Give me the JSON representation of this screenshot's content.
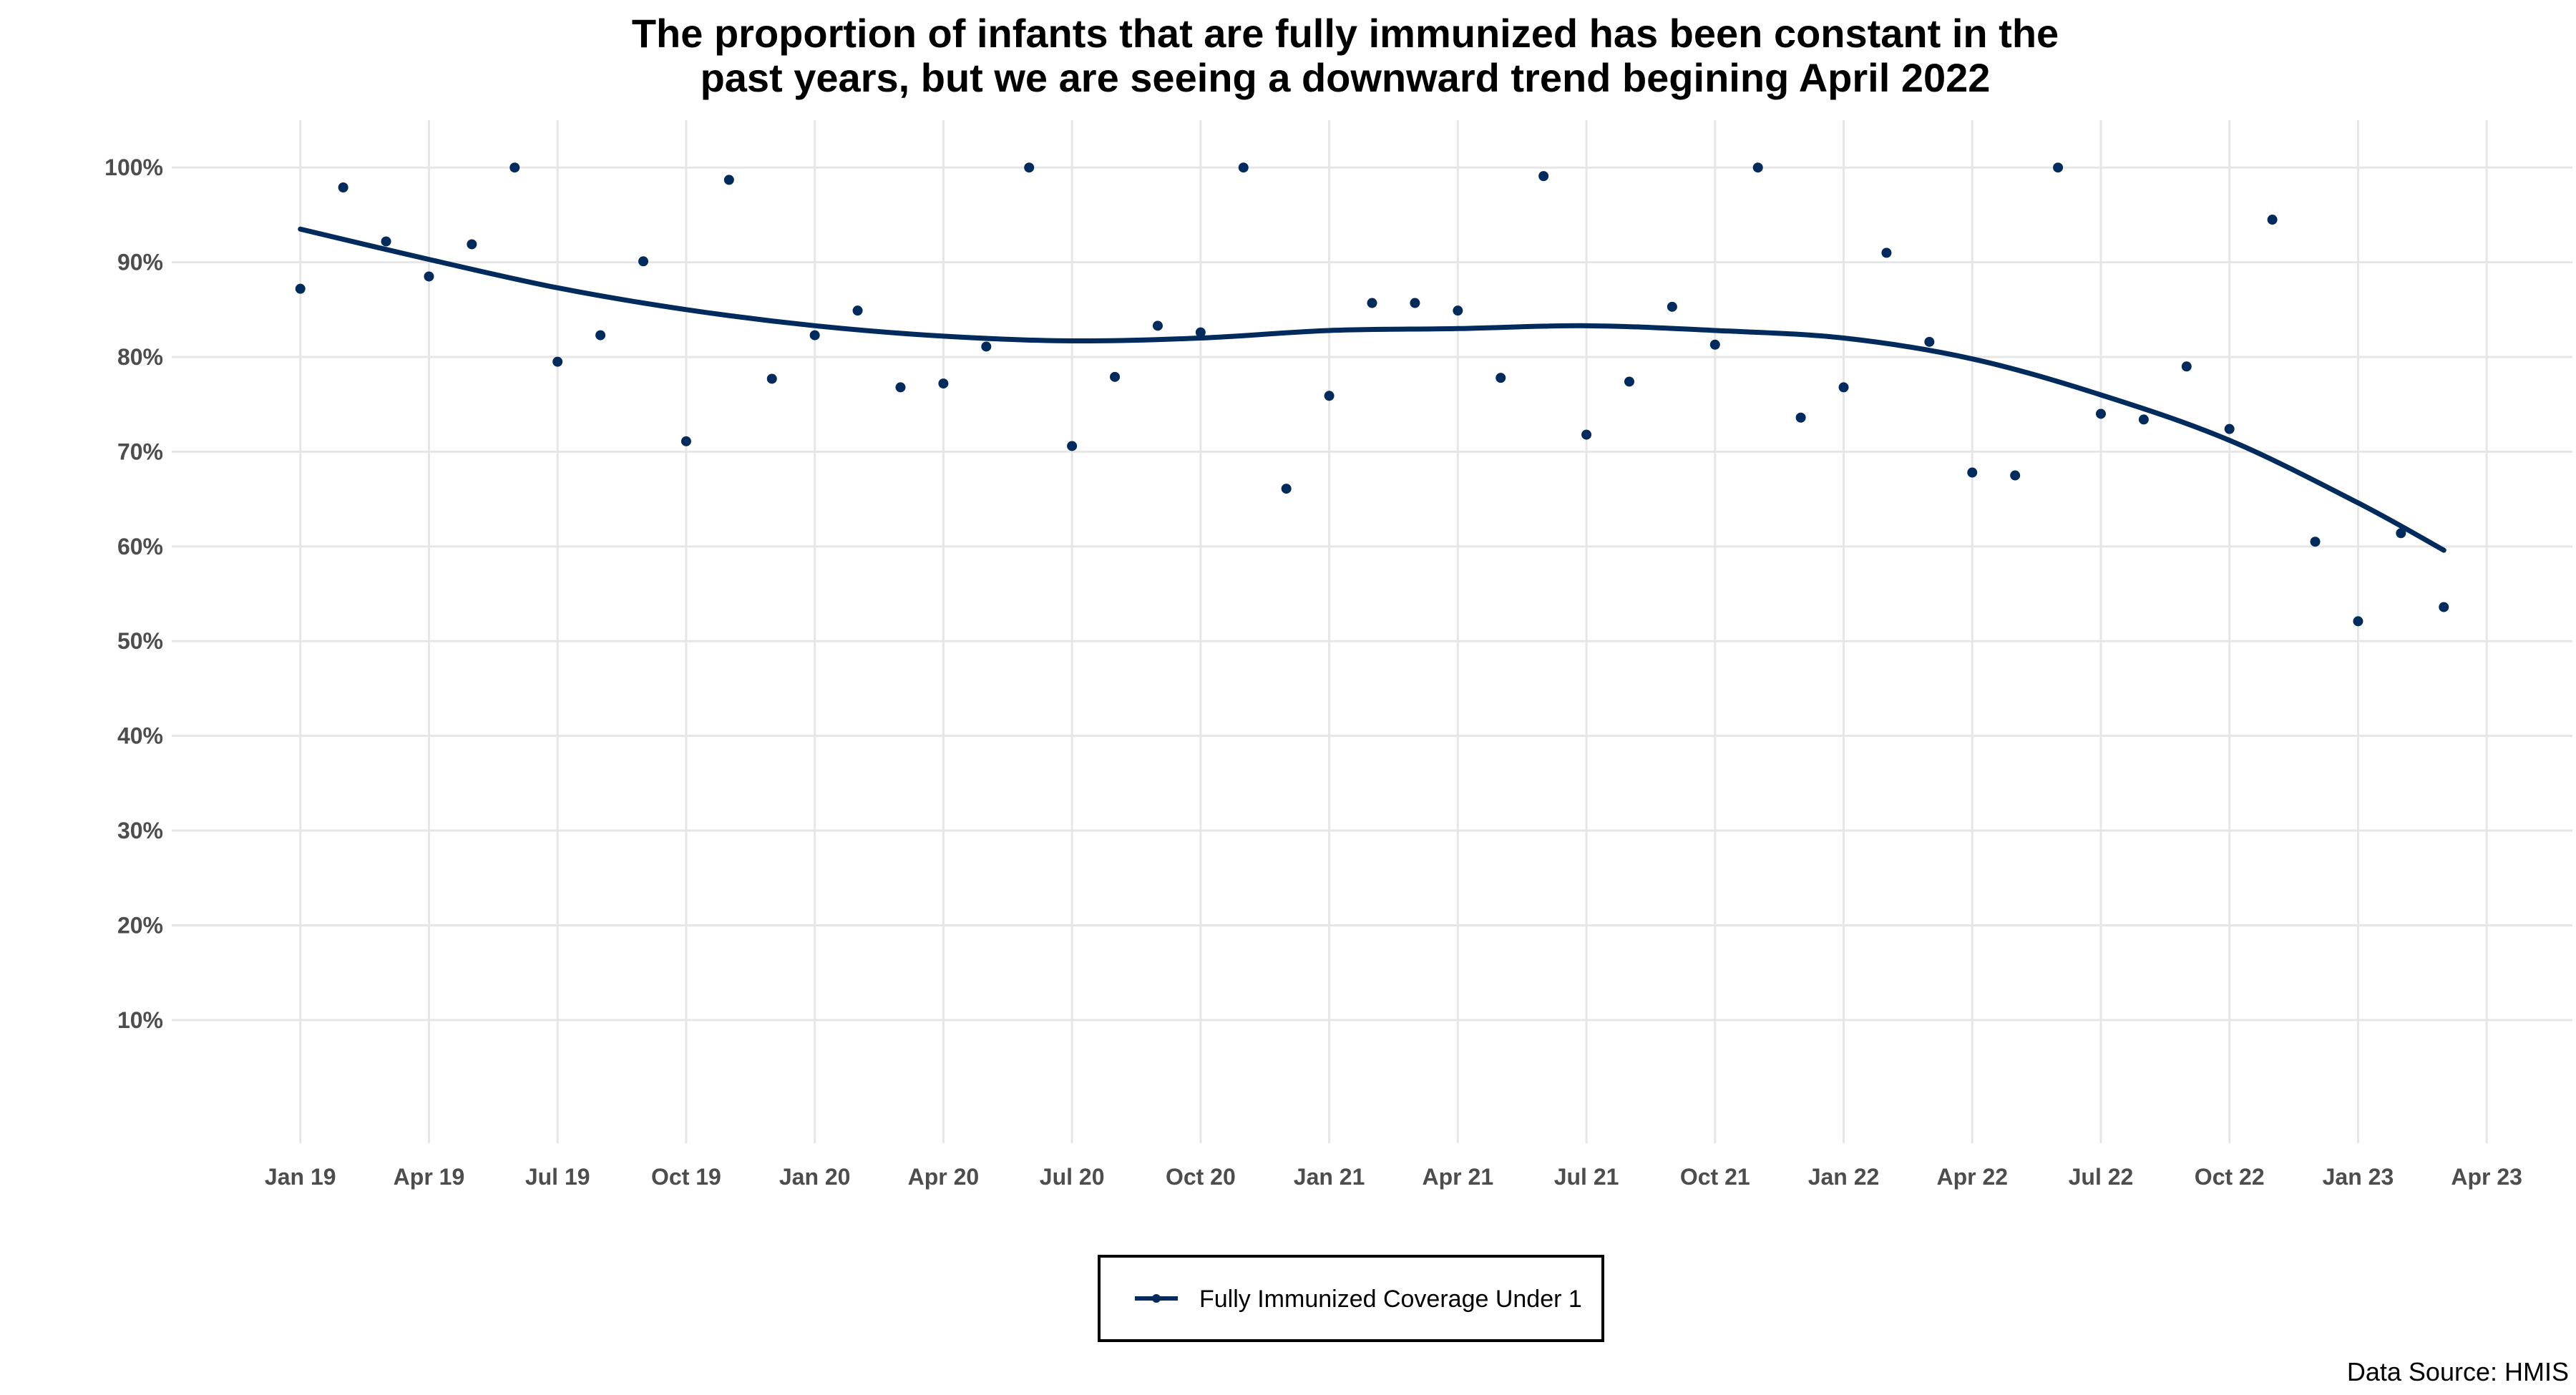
{
  "chart_data": {
    "type": "scatter",
    "title": "The proportion of infants that are fully immunized has been constant in the",
    "title_line2": "past years, but we are seeing a downward trend begining April 2022",
    "xlabel": "",
    "ylabel": "",
    "y_ticks": [
      "10%",
      "20%",
      "30%",
      "40%",
      "50%",
      "60%",
      "70%",
      "80%",
      "90%",
      "100%"
    ],
    "y_tick_values": [
      10,
      20,
      30,
      40,
      50,
      60,
      70,
      80,
      90,
      100
    ],
    "ylim": [
      -3,
      105
    ],
    "x_ticks": [
      "Jan 19",
      "Apr 19",
      "Jul 19",
      "Oct 19",
      "Jan 20",
      "Apr 20",
      "Jul 20",
      "Oct 20",
      "Jan 21",
      "Apr 21",
      "Jul 21",
      "Oct 21",
      "Jan 22",
      "Apr 22",
      "Jul 22",
      "Oct 22",
      "Jan 23",
      "Apr 23"
    ],
    "x_tick_dates": [
      "2019-01",
      "2019-04",
      "2019-07",
      "2019-10",
      "2020-01",
      "2020-04",
      "2020-07",
      "2020-10",
      "2021-01",
      "2021-04",
      "2021-07",
      "2021-10",
      "2022-01",
      "2022-04",
      "2022-07",
      "2022-10",
      "2023-01",
      "2023-04"
    ],
    "xlim": [
      "2018-10",
      "2023-06"
    ],
    "grid": true,
    "legend_position": "bottom",
    "series": [
      {
        "name": "Fully Immunized Coverage Under 1",
        "color": "#002b5c",
        "x": [
          "2019-01",
          "2019-02",
          "2019-03",
          "2019-04",
          "2019-05",
          "2019-06",
          "2019-07",
          "2019-08",
          "2019-09",
          "2019-10",
          "2019-11",
          "2019-12",
          "2020-01",
          "2020-02",
          "2020-03",
          "2020-04",
          "2020-05",
          "2020-06",
          "2020-07",
          "2020-08",
          "2020-09",
          "2020-10",
          "2020-11",
          "2020-12",
          "2021-01",
          "2021-02",
          "2021-03",
          "2021-04",
          "2021-05",
          "2021-06",
          "2021-07",
          "2021-08",
          "2021-09",
          "2021-10",
          "2021-11",
          "2021-12",
          "2022-01",
          "2022-02",
          "2022-03",
          "2022-04",
          "2022-05",
          "2022-06",
          "2022-07",
          "2022-08",
          "2022-09",
          "2022-10",
          "2022-11",
          "2022-12",
          "2023-01",
          "2023-02",
          "2023-03"
        ],
        "values": [
          87.2,
          97.9,
          92.2,
          88.5,
          91.9,
          100.0,
          79.5,
          82.3,
          90.1,
          71.1,
          98.7,
          77.7,
          82.3,
          84.9,
          76.8,
          77.2,
          81.1,
          100.0,
          70.6,
          77.9,
          83.3,
          82.6,
          100.0,
          66.1,
          75.9,
          85.7,
          85.7,
          84.9,
          77.8,
          99.1,
          71.8,
          77.4,
          85.3,
          81.3,
          100.0,
          73.6,
          76.8,
          91.0,
          81.6,
          67.8,
          67.5,
          100.0,
          74.0,
          73.4,
          79.0,
          72.4,
          94.5,
          60.5,
          52.1,
          61.4,
          53.6
        ]
      }
    ],
    "trend_line": {
      "x": [
        "2019-01",
        "2019-04",
        "2019-07",
        "2019-10",
        "2020-01",
        "2020-04",
        "2020-07",
        "2020-10",
        "2021-01",
        "2021-04",
        "2021-07",
        "2021-10",
        "2022-01",
        "2022-04",
        "2022-07",
        "2022-10",
        "2023-01",
        "2023-03"
      ],
      "values": [
        93.5,
        90.3,
        87.3,
        85.0,
        83.3,
        82.2,
        81.7,
        82.0,
        82.8,
        83.0,
        83.3,
        82.8,
        82.0,
        79.8,
        76.0,
        71.2,
        64.6,
        59.6
      ]
    }
  },
  "source_note": "Data Source: HMIS"
}
